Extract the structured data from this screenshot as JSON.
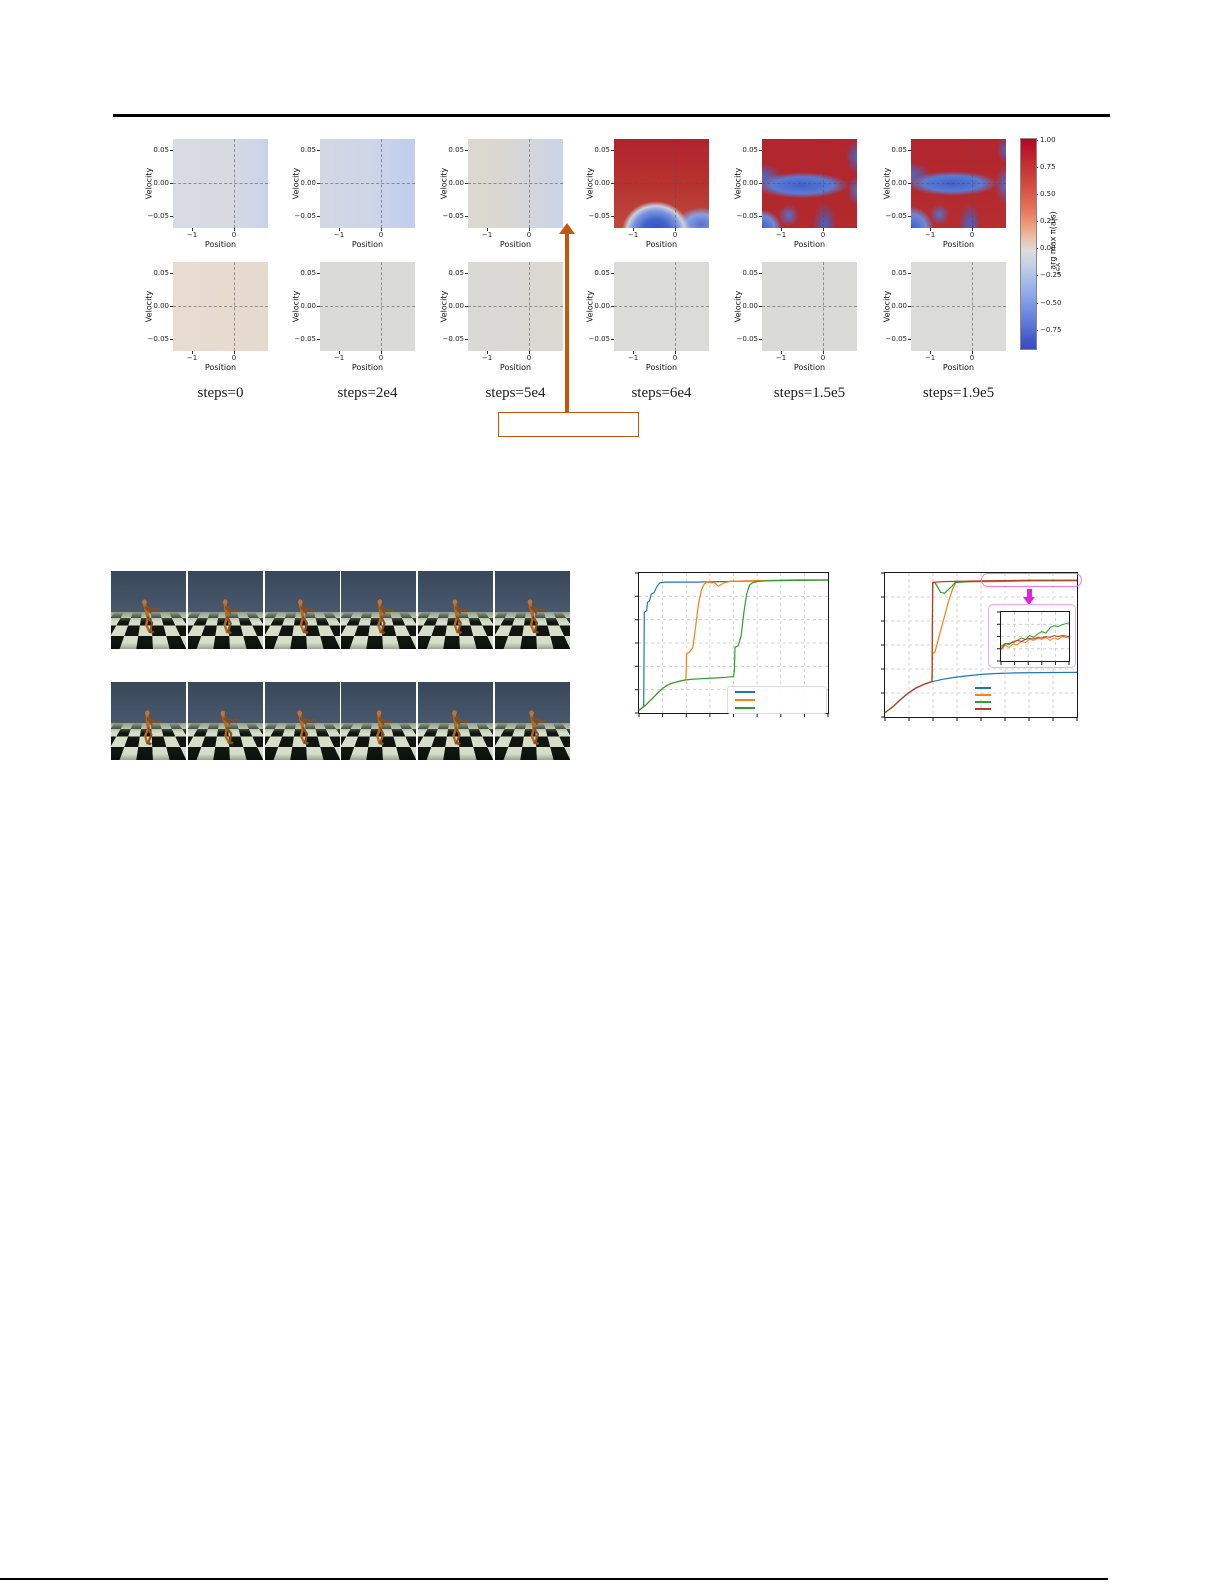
{
  "figure_policy": {
    "xlabel": "Position",
    "ylabel": "Velocity",
    "xticks": [
      "−1",
      "0"
    ],
    "yticks": [
      "0.05",
      "0.00",
      "−0.05"
    ],
    "col_labels": [
      "steps=0",
      "steps=2e4",
      "steps=5e4",
      "steps=6e4",
      "steps=1.5e5",
      "steps=1.9e5"
    ],
    "panels_row1": [
      {
        "name": "policy-top-steps0",
        "bg": "linear-gradient(90deg,#d8dbe1 0%,#d7dae1 60%,#cfd6e7 85%,#c9d2ea 100%)"
      },
      {
        "name": "policy-top-steps2e4",
        "bg": "linear-gradient(90deg,#d2d8e3 0%,#cdd5e7 55%,#c4cfee 85%,#c2ceef 100%)"
      },
      {
        "name": "policy-top-steps5e4",
        "bg": "linear-gradient(90deg,#dcd8d0 0%,#d9d7d3 40%,#d4d6da 65%,#cbd3e9 100%)"
      },
      {
        "name": "policy-top-steps6e4",
        "bg": "radial-gradient(42% 40% at 44% 104%, #2f52c3 0%, #3f64cd 34%, #7b95dc 58%, #c9cfdf 72%, rgba(190,70,60,0) 85%), radial-gradient(34% 24% at 92% 96%, #5872cf 0%, #8ba0de 48%, rgba(200,150,140,0) 80%), linear-gradient(180deg,#b2232d 0%,#b73431 55%,#bd4a3c 100%)"
      },
      {
        "name": "policy-top-steps1.5e5",
        "bg": "radial-gradient(26% 26% at 0% 100%, #3b5cc8 0%, #6d89d8 52%, rgba(200,80,70,0) 80%), radial-gradient(58% 17% at 42% 52%, #3f60ca 0%, #5c7bd3 55%, rgba(200,80,70,0) 85%), radial-gradient(28% 18% at 0% 42%, #4a6ace 0%, rgba(200,80,70,0) 80%), radial-gradient(16% 26% at 100% 20%, #4666cc 0%, rgba(200,80,70,0) 75%), radial-gradient(13% 22% at 100% 58%, #5070d0 0%, rgba(200,80,70,0) 78%), radial-gradient(16% 32% at 66% 96%, #4163cb 0%, rgba(200,80,70,0) 76%), radial-gradient(14% 16% at 28% 86%, #5372d1 0%, rgba(200,80,70,0) 78%), linear-gradient(180deg,#b2252e 0%,#b12a2d 100%)"
      },
      {
        "name": "policy-top-steps1.9e5",
        "bg": "radial-gradient(30% 30% at 0% 100%, #3b5cc8 0%, #6d89d8 52%, rgba(200,80,70,0) 80%), radial-gradient(56% 16% at 44% 50%, #3f60ca 0%, #5c7bd3 55%, rgba(200,80,70,0) 85%), radial-gradient(26% 18% at 0% 40%, #4a6ace 0%, rgba(200,80,70,0) 80%), radial-gradient(13% 20% at 100% 12%, #4666cc 0%, rgba(200,80,70,0) 75%), radial-gradient(15% 28% at 100% 52%, #5070d0 0%, rgba(200,80,70,0) 78%), radial-gradient(15% 30% at 62% 95%, #4163cb 0%, rgba(200,80,70,0) 76%), radial-gradient(13% 15% at 30% 85%, #5372d1 0%, rgba(200,80,70,0) 78%), linear-gradient(180deg,#b2252e 0%,#b42e2f 100%)"
      }
    ],
    "panels_row2": [
      {
        "name": "qdiff-steps0",
        "bg": "linear-gradient(90deg,#e8dcd2 0%,#e6dacf 100%)"
      },
      {
        "name": "qdiff-steps2e4",
        "bg": "#dadad8"
      },
      {
        "name": "qdiff-steps5e4",
        "bg": "linear-gradient(90deg,#d9d9d7 0%,#dcd8d2 100%)"
      },
      {
        "name": "qdiff-steps6e4",
        "bg": "#dbdbd9"
      },
      {
        "name": "qdiff-steps1.5e5",
        "bg": "#dadad8"
      },
      {
        "name": "qdiff-steps1.9e5",
        "bg": "#dbdbd9"
      }
    ],
    "colorbar": {
      "ticks": [
        "1.00",
        "0.75",
        "0.50",
        "0.25",
        "0.00",
        "−0.25",
        "−0.50",
        "−0.75"
      ],
      "label": "arg max π(a|s)",
      "sublabel": "a∈A",
      "gradient": "linear-gradient(180deg,#b40426 0%,#c0292e 10%,#d24b40 22%,#e57258 33%,#f0a183 42%,#e9c5b2 48%,#dddcdb 53%,#c6d0e9 60%,#a4bbe9 68%,#7f9be5 78%,#5c77d8 88%,#4156c9 96%,#3b4cc0 100%)"
    }
  },
  "callout": {
    "box_text": "",
    "color": "#c4590e"
  },
  "rollouts": {
    "sky_top": "#39475a",
    "sky_bottom": "#49586c",
    "floor_dark": "#10150f",
    "floor_light": "#d4dec9",
    "haze": "#93a08a",
    "body_color": "#b5691f",
    "body_dark": "#8f4d15",
    "rows": [
      {
        "name": "rollout-row-top",
        "poses": [
          {
            "tilt": -2,
            "dx": 0
          },
          {
            "tilt": 4,
            "dx": 2
          },
          {
            "tilt": 1,
            "dx": 1
          },
          {
            "tilt": 6,
            "dx": 3
          },
          {
            "tilt": 3,
            "dx": 2
          },
          {
            "tilt": 0,
            "dx": 1
          }
        ]
      },
      {
        "name": "rollout-row-bottom",
        "poses": [
          {
            "tilt": 8,
            "dx": 0
          },
          {
            "tilt": -4,
            "dx": 2
          },
          {
            "tilt": -1,
            "dx": 1
          },
          {
            "tilt": 7,
            "dx": 2
          },
          {
            "tilt": 5,
            "dx": 1
          },
          {
            "tilt": 2,
            "dx": 2
          }
        ]
      }
    ]
  },
  "chart_data": [
    {
      "type": "line",
      "name": "success-vs-steps-left",
      "title": "",
      "xlabel": "",
      "ylabel": "",
      "x_range_norm": [
        0,
        1
      ],
      "y_range_norm": [
        0,
        1
      ],
      "grid": "dashed",
      "legend_position": "lower right",
      "legend_labels": [
        "",
        "",
        ""
      ],
      "series": [
        {
          "name": "run-blue",
          "color": "#1f77b4",
          "points": [
            [
              0,
              0.02
            ],
            [
              0.01,
              0.03
            ],
            [
              0.02,
              0.04
            ],
            [
              0.025,
              0.05
            ],
            [
              0.028,
              0.72
            ],
            [
              0.04,
              0.73
            ],
            [
              0.045,
              0.79
            ],
            [
              0.055,
              0.8
            ],
            [
              0.065,
              0.85
            ],
            [
              0.08,
              0.86
            ],
            [
              0.095,
              0.905
            ],
            [
              0.11,
              0.93
            ],
            [
              0.14,
              0.935
            ],
            [
              0.3,
              0.935
            ],
            [
              0.5,
              0.94
            ],
            [
              0.7,
              0.945
            ],
            [
              1,
              0.95
            ]
          ]
        },
        {
          "name": "run-orange",
          "color": "#ff7f0e",
          "points": [
            [
              0,
              0.02
            ],
            [
              0.03,
              0.05
            ],
            [
              0.06,
              0.09
            ],
            [
              0.09,
              0.13
            ],
            [
              0.12,
              0.17
            ],
            [
              0.15,
              0.2
            ],
            [
              0.18,
              0.215
            ],
            [
              0.21,
              0.225
            ],
            [
              0.24,
              0.235
            ],
            [
              0.248,
              0.24
            ],
            [
              0.252,
              0.42
            ],
            [
              0.27,
              0.44
            ],
            [
              0.285,
              0.47
            ],
            [
              0.3,
              0.62
            ],
            [
              0.315,
              0.78
            ],
            [
              0.33,
              0.88
            ],
            [
              0.345,
              0.92
            ],
            [
              0.36,
              0.935
            ],
            [
              0.4,
              0.93
            ],
            [
              0.42,
              0.905
            ],
            [
              0.45,
              0.93
            ],
            [
              0.48,
              0.94
            ],
            [
              0.6,
              0.945
            ],
            [
              0.8,
              0.95
            ],
            [
              1,
              0.95
            ]
          ]
        },
        {
          "name": "run-green",
          "color": "#2ca02c",
          "points": [
            [
              0,
              0.02
            ],
            [
              0.03,
              0.05
            ],
            [
              0.06,
              0.09
            ],
            [
              0.09,
              0.13
            ],
            [
              0.12,
              0.17
            ],
            [
              0.15,
              0.2
            ],
            [
              0.18,
              0.215
            ],
            [
              0.22,
              0.23
            ],
            [
              0.27,
              0.24
            ],
            [
              0.33,
              0.245
            ],
            [
              0.4,
              0.25
            ],
            [
              0.46,
              0.255
            ],
            [
              0.5,
              0.26
            ],
            [
              0.505,
              0.3
            ],
            [
              0.508,
              0.47
            ],
            [
              0.525,
              0.48
            ],
            [
              0.54,
              0.55
            ],
            [
              0.555,
              0.72
            ],
            [
              0.57,
              0.85
            ],
            [
              0.585,
              0.915
            ],
            [
              0.6,
              0.93
            ],
            [
              0.63,
              0.94
            ],
            [
              0.7,
              0.945
            ],
            [
              0.85,
              0.95
            ],
            [
              1,
              0.95
            ]
          ]
        }
      ]
    },
    {
      "type": "line",
      "name": "success-vs-steps-right",
      "title": "",
      "xlabel": "",
      "ylabel": "",
      "x_range_norm": [
        0,
        1
      ],
      "y_range_norm": [
        0,
        1
      ],
      "grid": "dashed",
      "legend_position": "lower center",
      "legend_labels": [
        "",
        "",
        "",
        ""
      ],
      "series": [
        {
          "name": "run-blue",
          "color": "#1f77b4",
          "points": [
            [
              0,
              0.03
            ],
            [
              0.04,
              0.07
            ],
            [
              0.08,
              0.12
            ],
            [
              0.12,
              0.165
            ],
            [
              0.16,
              0.2
            ],
            [
              0.2,
              0.225
            ],
            [
              0.23,
              0.24
            ],
            [
              0.245,
              0.245
            ],
            [
              0.3,
              0.262
            ],
            [
              0.36,
              0.275
            ],
            [
              0.42,
              0.285
            ],
            [
              0.5,
              0.296
            ],
            [
              0.58,
              0.302
            ],
            [
              0.68,
              0.306
            ],
            [
              0.8,
              0.308
            ],
            [
              1,
              0.31
            ]
          ]
        },
        {
          "name": "run-orange",
          "color": "#ff7f0e",
          "points": [
            [
              0,
              0.03
            ],
            [
              0.04,
              0.07
            ],
            [
              0.08,
              0.12
            ],
            [
              0.12,
              0.165
            ],
            [
              0.16,
              0.2
            ],
            [
              0.2,
              0.225
            ],
            [
              0.23,
              0.24
            ],
            [
              0.245,
              0.245
            ],
            [
              0.248,
              0.44
            ],
            [
              0.26,
              0.45
            ],
            [
              0.27,
              0.5
            ],
            [
              0.3,
              0.65
            ],
            [
              0.33,
              0.8
            ],
            [
              0.355,
              0.9
            ],
            [
              0.37,
              0.935
            ],
            [
              0.42,
              0.94
            ],
            [
              0.55,
              0.94
            ],
            [
              0.75,
              0.945
            ],
            [
              1,
              0.945
            ]
          ]
        },
        {
          "name": "run-green",
          "color": "#2ca02c",
          "points": [
            [
              0,
              0.03
            ],
            [
              0.04,
              0.07
            ],
            [
              0.08,
              0.12
            ],
            [
              0.12,
              0.165
            ],
            [
              0.16,
              0.2
            ],
            [
              0.2,
              0.225
            ],
            [
              0.23,
              0.24
            ],
            [
              0.245,
              0.245
            ],
            [
              0.249,
              0.93
            ],
            [
              0.26,
              0.935
            ],
            [
              0.275,
              0.9
            ],
            [
              0.29,
              0.865
            ],
            [
              0.31,
              0.86
            ],
            [
              0.33,
              0.885
            ],
            [
              0.35,
              0.91
            ],
            [
              0.365,
              0.935
            ],
            [
              0.45,
              0.94
            ],
            [
              0.7,
              0.945
            ],
            [
              1,
              0.95
            ]
          ]
        },
        {
          "name": "run-red",
          "color": "#c0392b",
          "points": [
            [
              0,
              0.03
            ],
            [
              0.04,
              0.07
            ],
            [
              0.08,
              0.12
            ],
            [
              0.12,
              0.165
            ],
            [
              0.16,
              0.2
            ],
            [
              0.2,
              0.225
            ],
            [
              0.23,
              0.24
            ],
            [
              0.245,
              0.245
            ],
            [
              0.248,
              0.935
            ],
            [
              0.3,
              0.94
            ],
            [
              0.5,
              0.945
            ],
            [
              0.75,
              0.95
            ],
            [
              1,
              0.95
            ]
          ]
        }
      ],
      "annotations": {
        "highlight_box_color": "#f279e4",
        "arrow_color": "#e521d9",
        "inset_border_color": "#f4a6ee"
      }
    },
    {
      "type": "line",
      "name": "zoom-inset",
      "title": "",
      "grid": "dashed",
      "series": [
        {
          "name": "run-green",
          "color": "#2ca02c",
          "points": [
            [
              0,
              0.3
            ],
            [
              0.06,
              0.36
            ],
            [
              0.12,
              0.33
            ],
            [
              0.18,
              0.4
            ],
            [
              0.24,
              0.42
            ],
            [
              0.3,
              0.47
            ],
            [
              0.36,
              0.44
            ],
            [
              0.42,
              0.52
            ],
            [
              0.48,
              0.48
            ],
            [
              0.54,
              0.55
            ],
            [
              0.6,
              0.6
            ],
            [
              0.66,
              0.57
            ],
            [
              0.72,
              0.68
            ],
            [
              0.78,
              0.72
            ],
            [
              0.84,
              0.7
            ],
            [
              0.9,
              0.74
            ],
            [
              1,
              0.78
            ]
          ]
        },
        {
          "name": "run-orange",
          "color": "#ff7f0e",
          "points": [
            [
              0,
              0.22
            ],
            [
              0.06,
              0.32
            ],
            [
              0.12,
              0.28
            ],
            [
              0.18,
              0.35
            ],
            [
              0.24,
              0.33
            ],
            [
              0.3,
              0.4
            ],
            [
              0.36,
              0.38
            ],
            [
              0.42,
              0.44
            ],
            [
              0.48,
              0.42
            ],
            [
              0.54,
              0.46
            ],
            [
              0.6,
              0.44
            ],
            [
              0.66,
              0.48
            ],
            [
              0.72,
              0.42
            ],
            [
              0.78,
              0.47
            ],
            [
              0.84,
              0.44
            ],
            [
              0.9,
              0.5
            ],
            [
              1,
              0.47
            ]
          ]
        },
        {
          "name": "run-red",
          "color": "#c0392b",
          "points": [
            [
              0,
              0.25
            ],
            [
              0.06,
              0.35
            ],
            [
              0.12,
              0.36
            ],
            [
              0.18,
              0.38
            ],
            [
              0.24,
              0.42
            ],
            [
              0.3,
              0.4
            ],
            [
              0.36,
              0.44
            ],
            [
              0.42,
              0.46
            ],
            [
              0.48,
              0.45
            ],
            [
              0.54,
              0.48
            ],
            [
              0.6,
              0.47
            ],
            [
              0.66,
              0.5
            ],
            [
              0.72,
              0.48
            ],
            [
              0.78,
              0.52
            ],
            [
              0.84,
              0.5
            ],
            [
              0.9,
              0.52
            ],
            [
              1,
              0.5
            ]
          ]
        }
      ]
    }
  ]
}
